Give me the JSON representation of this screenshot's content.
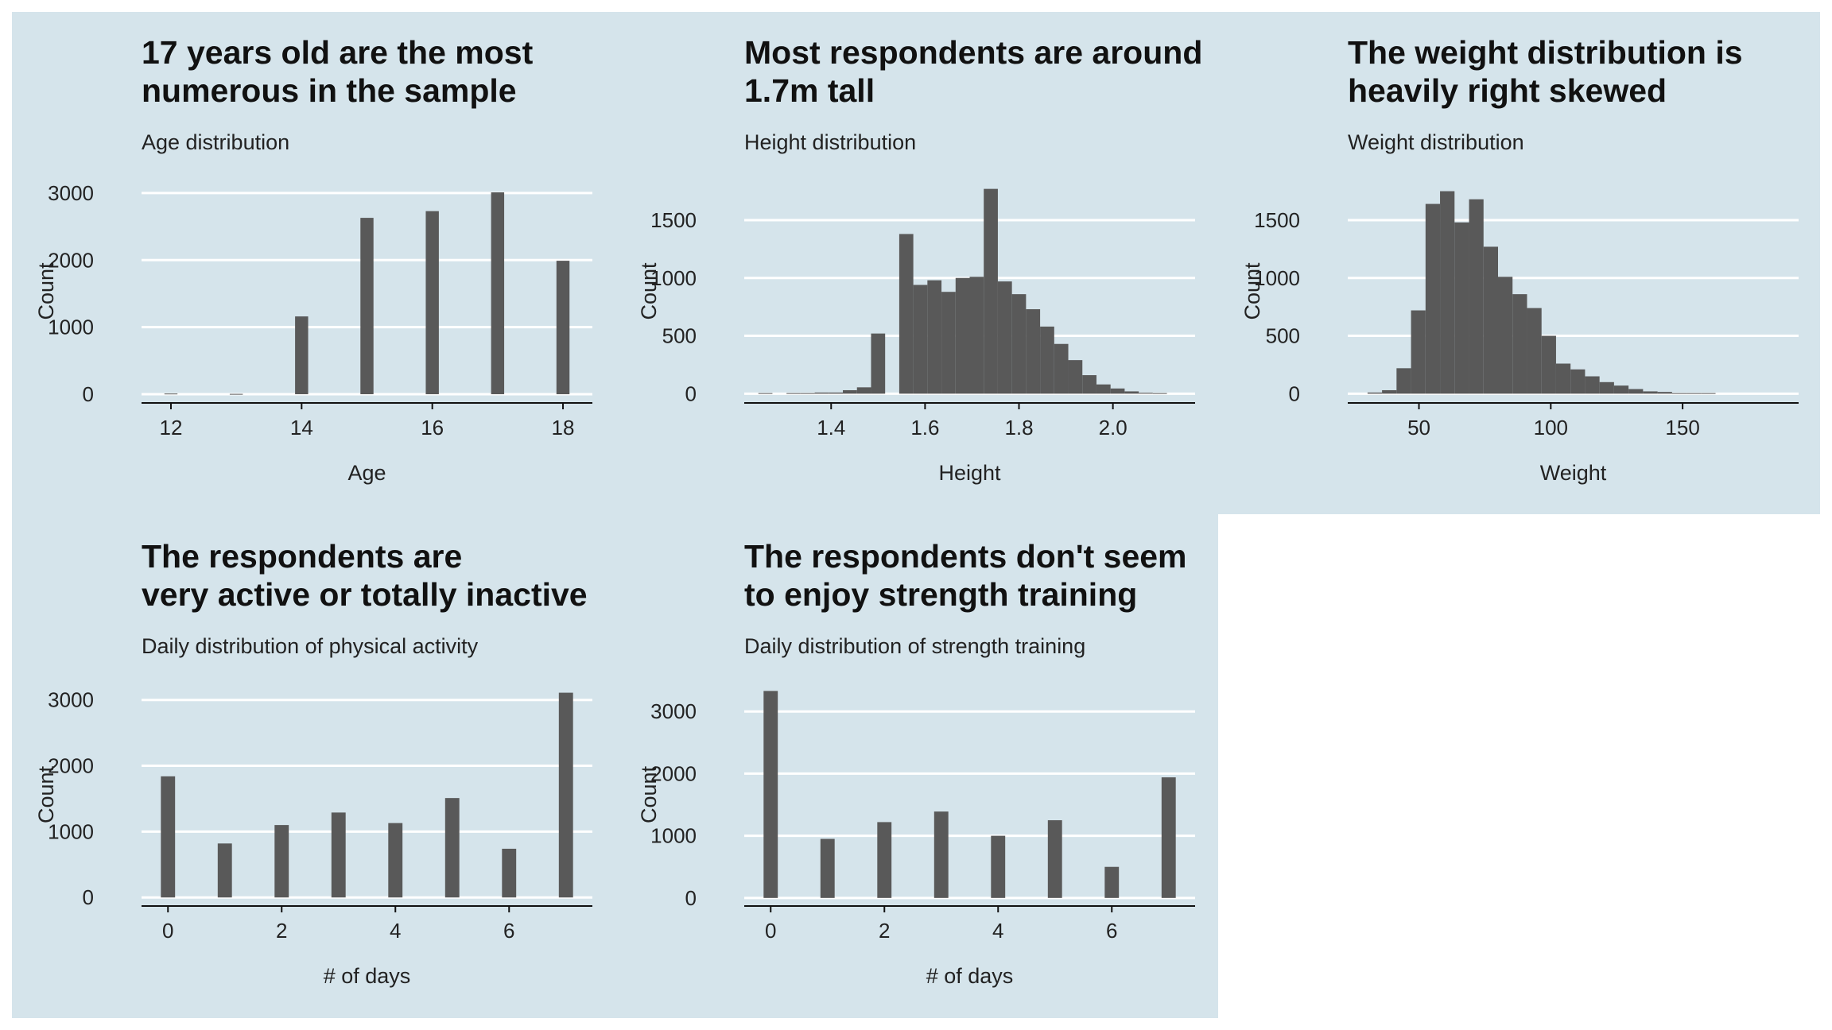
{
  "chart_data": [
    {
      "type": "bar",
      "title_lines": [
        "17 years old are the most",
        " numerous in the sample"
      ],
      "subtitle": "Age distribution",
      "xlabel": "Age",
      "ylabel": "Count",
      "xlim": [
        11.55,
        18.45
      ],
      "ylim": [
        -130,
        3200
      ],
      "bar_width": 0.2,
      "x_ticks": [
        12,
        14,
        16,
        18
      ],
      "y_ticks": [
        0,
        1000,
        2000,
        3000
      ],
      "x": [
        12,
        13,
        14,
        15,
        16,
        17,
        18
      ],
      "values": [
        10,
        5,
        1160,
        2630,
        2730,
        3010,
        1990
      ]
    },
    {
      "type": "bar",
      "title_lines": [
        "Most respondents are around",
        " 1.7m tall"
      ],
      "subtitle": "Height distribution",
      "xlabel": "Height",
      "ylabel": "Count",
      "xlim": [
        1.215,
        2.175
      ],
      "ylim": [
        -80,
        1850
      ],
      "bar_width": 0.03,
      "x_ticks": [
        1.4,
        1.6,
        1.8,
        2.0
      ],
      "x_tick_labels": [
        "1.4",
        "1.6",
        "1.8",
        "2.0"
      ],
      "y_ticks": [
        0,
        500,
        1000,
        1500
      ],
      "x": [
        1.26,
        1.32,
        1.35,
        1.38,
        1.41,
        1.44,
        1.47,
        1.5,
        1.53,
        1.56,
        1.59,
        1.62,
        1.65,
        1.68,
        1.71,
        1.74,
        1.77,
        1.8,
        1.83,
        1.86,
        1.89,
        1.92,
        1.95,
        1.98,
        2.01,
        2.04,
        2.07,
        2.1
      ],
      "values": [
        5,
        5,
        5,
        10,
        10,
        30,
        55,
        520,
        0,
        1380,
        940,
        980,
        880,
        1000,
        1010,
        1770,
        970,
        860,
        730,
        580,
        430,
        290,
        160,
        80,
        45,
        20,
        8,
        5
      ]
    },
    {
      "type": "bar",
      "title_lines": [
        "The weight distribution is",
        " heavily right skewed"
      ],
      "subtitle": "Weight distribution",
      "xlabel": "Weight",
      "ylabel": "Count",
      "xlim": [
        23,
        194
      ],
      "ylim": [
        -80,
        1850
      ],
      "bar_width": 5.5,
      "x_ticks": [
        50,
        100,
        150
      ],
      "y_ticks": [
        0,
        500,
        1000,
        1500
      ],
      "x": [
        33.25,
        38.75,
        44.25,
        49.75,
        55.25,
        60.75,
        66.25,
        71.75,
        77.25,
        82.75,
        88.25,
        93.75,
        99.25,
        104.75,
        110.25,
        115.75,
        121.25,
        126.75,
        132.25,
        137.75,
        143.25,
        148.75,
        154.25,
        159.75
      ],
      "values": [
        10,
        30,
        220,
        720,
        1640,
        1750,
        1480,
        1680,
        1270,
        1010,
        860,
        740,
        500,
        260,
        210,
        150,
        100,
        70,
        40,
        20,
        15,
        5,
        5,
        5
      ]
    },
    {
      "type": "bar",
      "title_lines": [
        "The respondents are",
        " very active or totally inactive"
      ],
      "subtitle": "Daily distribution of physical activity",
      "xlabel": "# of days",
      "ylabel": "Count",
      "xlim": [
        -0.465,
        7.465
      ],
      "ylim": [
        -130,
        3250
      ],
      "bar_width": 0.25,
      "x_ticks": [
        0,
        2,
        4,
        6
      ],
      "y_ticks": [
        0,
        1000,
        2000,
        3000
      ],
      "x": [
        0,
        1,
        2,
        3,
        4,
        5,
        6,
        7
      ],
      "values": [
        1840,
        820,
        1100,
        1290,
        1130,
        1510,
        740,
        3110
      ]
    },
    {
      "type": "bar",
      "title_lines": [
        "The respondents don't seem",
        " to enjoy strength training"
      ],
      "subtitle": "Daily distribution of strength training",
      "xlabel": "# of days",
      "ylabel": "Count",
      "xlim": [
        -0.465,
        7.465
      ],
      "ylim": [
        -130,
        3450
      ],
      "bar_width": 0.25,
      "x_ticks": [
        0,
        2,
        4,
        6
      ],
      "y_ticks": [
        0,
        1000,
        2000,
        3000
      ],
      "x": [
        0,
        1,
        2,
        3,
        4,
        5,
        6,
        7
      ],
      "values": [
        3330,
        950,
        1220,
        1390,
        1000,
        1250,
        500,
        1940
      ]
    }
  ],
  "colors": {
    "bar": "#595959",
    "grid": "#ffffff",
    "axis": "#111111",
    "panel_bg": "#d5e4eb"
  }
}
